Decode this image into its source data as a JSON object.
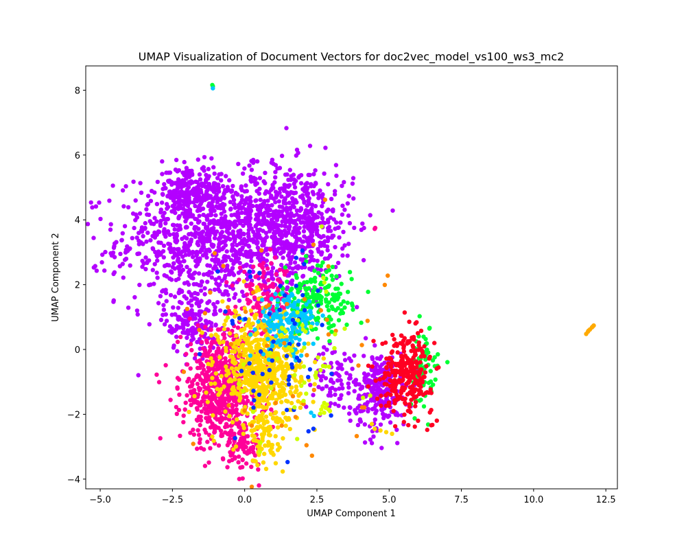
{
  "chart_data": {
    "type": "scatter",
    "title": "UMAP Visualization of Document Vectors for doc2vec_model_vs100_ws3_mc2",
    "xlabel": "UMAP Component 1",
    "ylabel": "UMAP Component 2",
    "xlim": [
      -5.5,
      12.9
    ],
    "ylim": [
      -4.3,
      8.75
    ],
    "xticks": [
      -5.0,
      -2.5,
      0.0,
      2.5,
      5.0,
      7.5,
      10.0,
      12.5
    ],
    "xtick_labels": [
      "−5.0",
      "−2.5",
      "0.0",
      "2.5",
      "5.0",
      "7.5",
      "10.0",
      "12.5"
    ],
    "yticks": [
      -4,
      -2,
      0,
      2,
      4,
      6,
      8
    ],
    "ytick_labels": [
      "−4",
      "−2",
      "0",
      "2",
      "4",
      "6",
      "8"
    ],
    "grid": false,
    "legend": "none",
    "clusters": [
      {
        "color": "#b300ff",
        "cx": -1.2,
        "cy": 3.4,
        "sx": 1.6,
        "sy": 1.0,
        "n": 900
      },
      {
        "color": "#b300ff",
        "cx": 1.6,
        "cy": 3.9,
        "sx": 1.1,
        "sy": 0.9,
        "n": 600
      },
      {
        "color": "#b300ff",
        "cx": -1.9,
        "cy": 4.9,
        "sx": 0.5,
        "sy": 0.4,
        "n": 200
      },
      {
        "color": "#b300ff",
        "cx": -1.8,
        "cy": 0.9,
        "sx": 0.5,
        "sy": 0.5,
        "n": 160
      },
      {
        "color": "#b300ff",
        "cx": 4.7,
        "cy": -1.3,
        "sx": 0.45,
        "sy": 0.6,
        "n": 260
      },
      {
        "color": "#b300ff",
        "cx": 3.2,
        "cy": -0.9,
        "sx": 0.4,
        "sy": 0.5,
        "n": 80
      },
      {
        "color": "#ff0099",
        "cx": -0.8,
        "cy": -1.2,
        "sx": 0.7,
        "sy": 0.9,
        "n": 650
      },
      {
        "color": "#ff0099",
        "cx": 0.0,
        "cy": -3.0,
        "sx": 0.3,
        "sy": 0.35,
        "n": 80
      },
      {
        "color": "#ff0099",
        "cx": 0.7,
        "cy": 1.6,
        "sx": 0.5,
        "sy": 0.5,
        "n": 120
      },
      {
        "color": "#ffd700",
        "cx": 0.6,
        "cy": -0.6,
        "sx": 0.7,
        "sy": 0.9,
        "n": 650
      },
      {
        "color": "#ffd700",
        "cx": 0.7,
        "cy": -2.8,
        "sx": 0.25,
        "sy": 0.4,
        "n": 60
      },
      {
        "color": "#00ff33",
        "cx": 2.5,
        "cy": 1.5,
        "sx": 0.6,
        "sy": 0.5,
        "n": 180
      },
      {
        "color": "#00ff33",
        "cx": 6.2,
        "cy": -0.6,
        "sx": 0.25,
        "sy": 0.6,
        "n": 70
      },
      {
        "color": "#00c8ff",
        "cx": 1.5,
        "cy": 0.8,
        "sx": 0.5,
        "sy": 0.5,
        "n": 160
      },
      {
        "color": "#0033ff",
        "cx": 1.1,
        "cy": 0.3,
        "sx": 1.0,
        "sy": 1.5,
        "n": 60
      },
      {
        "color": "#ff0022",
        "cx": 5.6,
        "cy": -0.7,
        "sx": 0.45,
        "sy": 0.6,
        "n": 280
      },
      {
        "color": "#ff8800",
        "cx": 1.0,
        "cy": 0.0,
        "sx": 1.8,
        "sy": 2.0,
        "n": 50
      },
      {
        "color": "#ccff00",
        "cx": 1.8,
        "cy": -0.5,
        "sx": 1.2,
        "sy": 1.3,
        "n": 50
      }
    ],
    "series": [
      {
        "color": "#ffaa00",
        "x": [
          11.82,
          11.88,
          11.95,
          12.02,
          12.08,
          11.9,
          12.05
        ],
        "y": [
          0.48,
          0.55,
          0.62,
          0.68,
          0.74,
          0.58,
          0.71
        ]
      },
      {
        "color": "#00ff33",
        "x": [
          -1.12,
          -1.1
        ],
        "y": [
          8.16,
          8.12
        ]
      },
      {
        "color": "#00c8ff",
        "x": [
          -1.1
        ],
        "y": [
          8.06
        ]
      },
      {
        "color": "#ff0099",
        "x": [
          4.5,
          4.52
        ],
        "y": [
          3.72,
          3.75
        ]
      },
      {
        "color": "#ddff00",
        "x": [
          2.7,
          2.8,
          2.9,
          2.75,
          2.85,
          2.95,
          2.65
        ],
        "y": [
          -1.75,
          -1.8,
          -1.85,
          -1.95,
          -1.7,
          -1.9,
          -1.85
        ]
      },
      {
        "color": "#00c8ff",
        "x": [
          2.3,
          2.4
        ],
        "y": [
          -1.95,
          -2.05
        ]
      },
      {
        "color": "#ffd700",
        "x": [
          4.7,
          4.9,
          5.1,
          4.4,
          4.5
        ],
        "y": [
          -2.5,
          -2.55,
          -2.6,
          -2.3,
          -2.45
        ]
      },
      {
        "color": "#b300ff",
        "x": [
          -4.6,
          -4.5,
          -4.3,
          -4.1
        ],
        "y": [
          2.9,
          2.85,
          2.95,
          2.8
        ]
      }
    ]
  }
}
